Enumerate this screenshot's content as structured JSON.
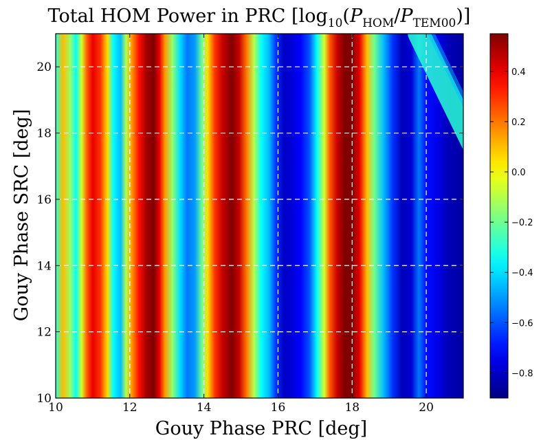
{
  "chart_data": {
    "type": "heatmap",
    "title": {
      "prefix": "Total HOM Power in PRC [log",
      "sub1": "10",
      "open": "(",
      "p1": "P",
      "sub2": "HOM",
      "slash": "/",
      "p2": "P",
      "sub3": "TEM00",
      "close": ")]"
    },
    "xlabel": "Gouy Phase PRC [deg]",
    "ylabel": "Gouy Phase SRC [deg]",
    "xlim": [
      10,
      21
    ],
    "ylim": [
      10,
      21
    ],
    "xticks": [
      10,
      12,
      14,
      16,
      18,
      20
    ],
    "xtick_labels": [
      "10",
      "12",
      "14",
      "16",
      "18",
      "20"
    ],
    "yticks": [
      10,
      12,
      14,
      16,
      18,
      20
    ],
    "ytick_labels": [
      "10",
      "12",
      "14",
      "16",
      "18",
      "20"
    ],
    "grid": "dashed white",
    "colormap": "jet",
    "colorbar": {
      "range": [
        -0.9,
        0.55
      ],
      "ticks": [
        0.4,
        0.2,
        0.0,
        -0.2,
        -0.4,
        -0.6,
        -0.8
      ],
      "tick_labels": [
        "0.4",
        "0.2",
        "0.0",
        "−0.2",
        "−0.4",
        "−0.6",
        "−0.8"
      ]
    },
    "column_profile": {
      "x": [
        10.0,
        10.2,
        10.4,
        10.55,
        10.7,
        10.85,
        11.0,
        11.2,
        11.4,
        11.55,
        11.75,
        11.9,
        12.05,
        12.25,
        12.45,
        12.65,
        12.8,
        12.95,
        13.15,
        13.35,
        13.55,
        13.75,
        13.95,
        14.1,
        14.3,
        14.5,
        14.75,
        14.95,
        15.15,
        15.35,
        15.55,
        15.75,
        15.95,
        16.15,
        16.35,
        16.6,
        16.85,
        17.05,
        17.25,
        17.4,
        17.6,
        17.8,
        18.0,
        18.2,
        18.4,
        18.6,
        18.85,
        19.1,
        19.35,
        19.6,
        19.8,
        20.0,
        20.3,
        20.6,
        21.0
      ],
      "value": [
        -0.3,
        0.1,
        -0.15,
        -0.35,
        -0.05,
        0.25,
        0.4,
        0.3,
        0.05,
        -0.35,
        -0.45,
        -0.1,
        0.15,
        0.35,
        0.5,
        0.55,
        0.4,
        0.15,
        -0.15,
        -0.4,
        -0.55,
        -0.5,
        -0.2,
        0.05,
        0.3,
        0.45,
        0.55,
        0.45,
        0.2,
        -0.1,
        -0.35,
        -0.45,
        -0.65,
        -0.8,
        -0.78,
        -0.72,
        -0.6,
        -0.35,
        -0.05,
        0.25,
        0.45,
        0.55,
        0.55,
        0.4,
        0.1,
        -0.2,
        -0.45,
        -0.65,
        -0.82,
        -0.78,
        -0.55,
        -0.7,
        -0.75,
        -0.82,
        -0.85
      ]
    },
    "diagonal_band": {
      "x_at_top": 19.8,
      "x_at_bottom": 21.0,
      "y_range": [
        17.8,
        21.0
      ],
      "value": -0.3
    }
  }
}
